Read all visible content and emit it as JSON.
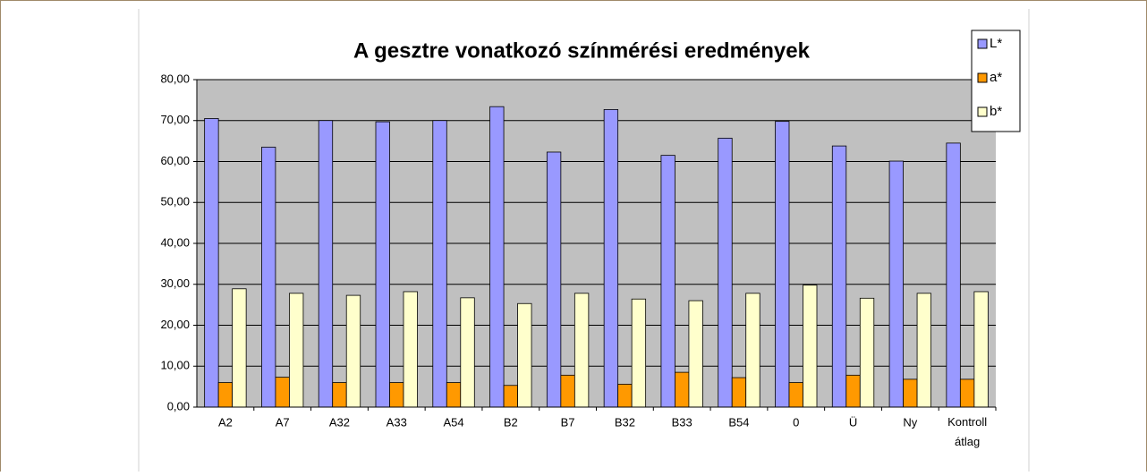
{
  "chart_data": {
    "type": "bar",
    "title": "A gesztre vonatkozó színmérési eredmények",
    "categories": [
      "A2",
      "A7",
      "A32",
      "A33",
      "A54",
      "B2",
      "B7",
      "B32",
      "B33",
      "B54",
      "0",
      "Ü",
      "Ny",
      "Kontroll átlag"
    ],
    "series": [
      {
        "name": "L*",
        "color": "#9999ff",
        "values": [
          70.5,
          63.5,
          70.0,
          69.7,
          70.0,
          73.4,
          62.3,
          72.7,
          61.5,
          65.7,
          69.8,
          63.8,
          60.1,
          64.5
        ]
      },
      {
        "name": "a*",
        "color": "#ff9900",
        "values": [
          6.0,
          7.3,
          6.0,
          6.0,
          6.0,
          5.3,
          7.8,
          5.6,
          8.5,
          7.2,
          6.0,
          7.8,
          6.8,
          6.8
        ]
      },
      {
        "name": "b*",
        "color": "#ffffcc",
        "values": [
          28.9,
          27.8,
          27.3,
          28.2,
          26.7,
          25.3,
          27.8,
          26.4,
          26.0,
          27.8,
          29.8,
          26.6,
          27.8,
          28.2
        ]
      }
    ],
    "ylim": [
      0,
      80
    ],
    "yticks": [
      {
        "value": 0,
        "label": "0,00"
      },
      {
        "value": 10,
        "label": "10,00"
      },
      {
        "value": 20,
        "label": "20,00"
      },
      {
        "value": 30,
        "label": "30,00"
      },
      {
        "value": 40,
        "label": "40,00"
      },
      {
        "value": 50,
        "label": "50,00"
      },
      {
        "value": 60,
        "label": "60,00"
      },
      {
        "value": 70,
        "label": "70,00"
      },
      {
        "value": 80,
        "label": "80,00"
      }
    ],
    "grid": true,
    "legend": "top-right"
  }
}
